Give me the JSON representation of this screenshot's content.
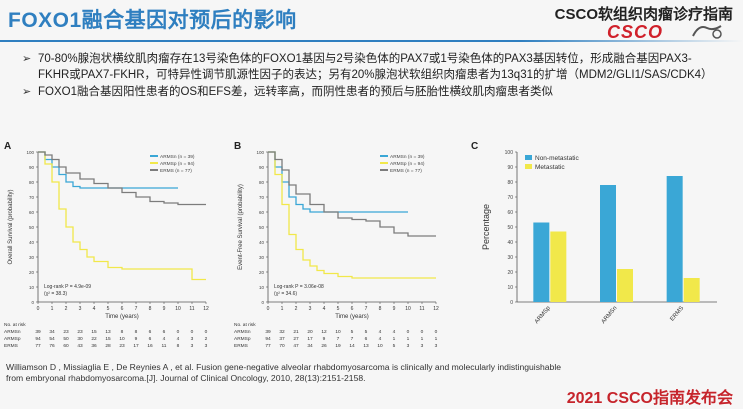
{
  "header": {
    "title": "FOXO1融合基因对预后的影响",
    "brand": "CSCO软组织肉瘤诊疗指南",
    "logo": "CSCO",
    "accent_color": "#2f7fc0"
  },
  "bullets": [
    "70-80%腺泡状横纹肌肉瘤存在13号染色体的FOXO1基因与2号染色体的PAX7或1号染色体的PAX3基因转位，形成融合基因PAX3-FKHR或PAX7-FKHR，可特异性调节肌源性因子的表达；另有20%腺泡状软组织肉瘤患者为13q31的扩增（MDM2/GLI1/SAS/CDK4）",
    "FOXO1融合基因阳性患者的OS和EFS差，远转率高，而阴性患者的预后与胚胎性横纹肌肉瘤患者类似"
  ],
  "bullet_icon": "arrow-bullet-icon",
  "chart_data": [
    {
      "panel": "A",
      "type": "line",
      "ylabel": "Overall Survival (probability)",
      "xlabel": "Time (years)",
      "xlim": [
        0,
        12
      ],
      "ylim": [
        0,
        1
      ],
      "x_ticks": [
        "0",
        "1",
        "2",
        "3",
        "4",
        "5",
        "6",
        "7",
        "8",
        "9",
        "10",
        "11",
        "12"
      ],
      "y_ticks": [
        "0",
        "10",
        "20",
        "30",
        "40",
        "50",
        "60",
        "70",
        "80",
        "90",
        "100"
      ],
      "annotation": [
        "Log-rank P = 4.9e-09",
        "(χ² = 38.3)"
      ],
      "legend_position": "top-right",
      "series": [
        {
          "name": "ARMSn (n = 39)",
          "color": "#3aa7d6",
          "x": [
            0,
            0.5,
            1,
            1.5,
            2,
            2.5,
            3,
            4,
            5,
            6,
            7,
            8,
            9,
            10
          ],
          "y": [
            1,
            0.95,
            0.9,
            0.85,
            0.8,
            0.77,
            0.76,
            0.76,
            0.76,
            0.76,
            0.76,
            0.76,
            0.76,
            0.76
          ]
        },
        {
          "name": "ARMSp (n = 94)",
          "color": "#f1e84a",
          "x": [
            0,
            0.5,
            1,
            1.5,
            2,
            2.5,
            3,
            3.5,
            4,
            5,
            6,
            7,
            8,
            9,
            10,
            11,
            12
          ],
          "y": [
            1,
            0.92,
            0.8,
            0.62,
            0.5,
            0.4,
            0.35,
            0.3,
            0.27,
            0.23,
            0.22,
            0.22,
            0.22,
            0.22,
            0.22,
            0.15,
            0.15
          ]
        },
        {
          "name": "ERMS (n = 77)",
          "color": "#7c7c7c",
          "x": [
            0,
            0.5,
            1,
            1.5,
            2,
            3,
            4,
            5,
            6,
            7,
            8,
            9,
            10,
            11,
            12
          ],
          "y": [
            1,
            0.98,
            0.95,
            0.9,
            0.86,
            0.82,
            0.79,
            0.76,
            0.73,
            0.7,
            0.67,
            0.66,
            0.65,
            0.65,
            0.65
          ]
        }
      ],
      "risk_table": {
        "header": "No. at risk",
        "rows": [
          {
            "label": "ARMSn",
            "values": [
              "39",
              "34",
              "23",
              "23",
              "15",
              "13",
              "8",
              "8",
              "6",
              "6",
              "0",
              "0",
              "0"
            ]
          },
          {
            "label": "ARMSp",
            "values": [
              "94",
              "54",
              "50",
              "30",
              "22",
              "15",
              "10",
              "9",
              "6",
              "4",
              "4",
              "3",
              "2"
            ]
          },
          {
            "label": "ERMS",
            "values": [
              "77",
              "76",
              "60",
              "43",
              "36",
              "28",
              "23",
              "17",
              "16",
              "11",
              "8",
              "3",
              "3"
            ]
          }
        ]
      }
    },
    {
      "panel": "B",
      "type": "line",
      "ylabel": "Event-Free Survival (probability)",
      "xlabel": "Time (years)",
      "xlim": [
        0,
        12
      ],
      "ylim": [
        0,
        1
      ],
      "x_ticks": [
        "0",
        "1",
        "2",
        "3",
        "4",
        "5",
        "6",
        "7",
        "8",
        "9",
        "10",
        "11",
        "12"
      ],
      "y_ticks": [
        "0",
        "10",
        "20",
        "30",
        "40",
        "50",
        "60",
        "70",
        "80",
        "90",
        "100"
      ],
      "annotation": [
        "Log-rank P = 3.06e-08",
        "(χ² = 34.6)"
      ],
      "legend_position": "top-right",
      "series": [
        {
          "name": "ARMSn (n = 39)",
          "color": "#3aa7d6",
          "x": [
            0,
            0.5,
            1,
            1.5,
            2,
            2.5,
            3,
            4,
            5,
            6,
            7,
            8,
            9,
            10
          ],
          "y": [
            1,
            0.9,
            0.8,
            0.7,
            0.65,
            0.62,
            0.6,
            0.6,
            0.6,
            0.6,
            0.6,
            0.6,
            0.6,
            0.6
          ]
        },
        {
          "name": "ARMSp (n = 94)",
          "color": "#f1e84a",
          "x": [
            0,
            0.5,
            1,
            1.5,
            2,
            2.5,
            3,
            3.5,
            4,
            5,
            6,
            7,
            8,
            9,
            10,
            11,
            12
          ],
          "y": [
            1,
            0.85,
            0.65,
            0.45,
            0.35,
            0.28,
            0.24,
            0.21,
            0.19,
            0.17,
            0.16,
            0.16,
            0.16,
            0.16,
            0.16,
            0.16,
            0.16
          ]
        },
        {
          "name": "ERMS (n = 77)",
          "color": "#7c7c7c",
          "x": [
            0,
            0.5,
            1,
            1.5,
            2,
            3,
            4,
            5,
            6,
            7,
            8,
            9,
            10,
            11,
            12
          ],
          "y": [
            1,
            0.95,
            0.88,
            0.78,
            0.72,
            0.65,
            0.6,
            0.56,
            0.55,
            0.54,
            0.5,
            0.46,
            0.44,
            0.44,
            0.44
          ]
        }
      ],
      "risk_table": {
        "header": "No. at risk",
        "rows": [
          {
            "label": "ARMSn",
            "values": [
              "39",
              "32",
              "21",
              "20",
              "12",
              "10",
              "5",
              "5",
              "4",
              "4",
              "0",
              "0",
              "0"
            ]
          },
          {
            "label": "ARMSp",
            "values": [
              "94",
              "37",
              "27",
              "17",
              "9",
              "7",
              "7",
              "6",
              "4",
              "1",
              "1",
              "1",
              "1"
            ]
          },
          {
            "label": "ERMS",
            "values": [
              "77",
              "70",
              "47",
              "34",
              "26",
              "19",
              "14",
              "13",
              "10",
              "5",
              "3",
              "3",
              "3"
            ]
          }
        ]
      }
    },
    {
      "panel": "C",
      "type": "bar",
      "ylabel": "Percentage",
      "categories": [
        "ARMSp",
        "ARMSn",
        "ERMS"
      ],
      "ylim": [
        0,
        100
      ],
      "y_ticks": [
        "0",
        "10",
        "20",
        "30",
        "40",
        "50",
        "60",
        "70",
        "80",
        "90",
        "100"
      ],
      "legend_position": "top-left",
      "series": [
        {
          "name": "Non-metastatic",
          "color": "#3aa7d6",
          "values": [
            53,
            78,
            84
          ]
        },
        {
          "name": "Metastatic",
          "color": "#f1e84a",
          "values": [
            47,
            22,
            16
          ]
        }
      ]
    }
  ],
  "reference": "Williamson D , Missiaglia E , De Reynies A , et al. Fusion gene-negative alveolar rhabdomyosarcoma is clinically and molecularly indistinguishable from embryonal rhabdomyosarcoma.[J]. Journal of Clinical Oncology, 2010, 28(13):2151-2158.",
  "footer": "2021 CSCO指南发布会"
}
